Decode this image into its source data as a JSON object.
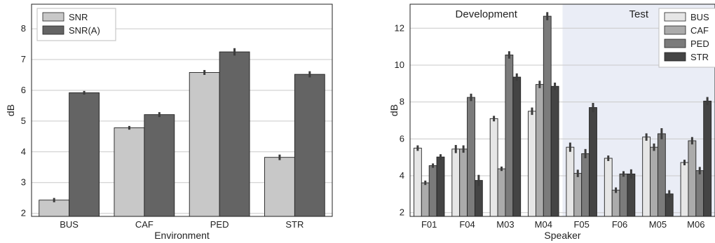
{
  "chart_data": [
    {
      "type": "bar",
      "title": "",
      "xlabel": "Environment",
      "ylabel": "dB",
      "ylim": [
        1.9,
        8.8
      ],
      "yticks": [
        2,
        3,
        4,
        5,
        6,
        7,
        8
      ],
      "categories": [
        "BUS",
        "CAF",
        "PED",
        "STR"
      ],
      "series": [
        {
          "name": "SNR",
          "color": "#c8c8c8",
          "values": [
            2.43,
            4.78,
            6.58,
            3.82
          ],
          "errors": [
            0.07,
            0.06,
            0.08,
            0.09
          ]
        },
        {
          "name": "SNR(A)",
          "color": "#646464",
          "values": [
            5.92,
            5.21,
            7.25,
            6.52
          ],
          "errors": [
            0.06,
            0.08,
            0.12,
            0.1
          ]
        }
      ],
      "legend": "top-left",
      "grid": true
    },
    {
      "type": "bar",
      "title": "",
      "xlabel": "Speaker",
      "ylabel": "dB",
      "ylim": [
        1.8,
        13.3
      ],
      "yticks": [
        2,
        4,
        6,
        8,
        10,
        12
      ],
      "categories": [
        "F01",
        "F04",
        "M03",
        "M04",
        "F05",
        "F06",
        "M05",
        "M06"
      ],
      "regions": [
        {
          "label": "Development",
          "from": 0,
          "to": 3,
          "color": "#ffffff"
        },
        {
          "label": "Test",
          "from": 4,
          "to": 7,
          "color": "#eaedf6"
        }
      ],
      "series": [
        {
          "name": "BUS",
          "color": "#e6e6e6",
          "values": [
            5.5,
            5.45,
            7.1,
            7.5,
            5.55,
            4.95,
            6.1,
            4.72
          ],
          "errors": [
            0.15,
            0.22,
            0.15,
            0.2,
            0.25,
            0.15,
            0.2,
            0.15
          ]
        },
        {
          "name": "CAF",
          "color": "#ababab",
          "values": [
            3.62,
            5.45,
            4.38,
            8.95,
            4.13,
            3.22,
            5.55,
            5.9
          ],
          "errors": [
            0.12,
            0.2,
            0.12,
            0.2,
            0.2,
            0.15,
            0.2,
            0.2
          ]
        },
        {
          "name": "PED",
          "color": "#7b7b7b",
          "values": [
            4.55,
            8.25,
            10.55,
            12.65,
            5.2,
            4.1,
            6.28,
            4.28
          ],
          "errors": [
            0.12,
            0.2,
            0.2,
            0.22,
            0.25,
            0.15,
            0.3,
            0.2
          ]
        },
        {
          "name": "STR",
          "color": "#444444",
          "values": [
            5.02,
            3.75,
            9.35,
            8.85,
            7.7,
            4.1,
            3.02,
            8.05
          ],
          "errors": [
            0.15,
            0.3,
            0.2,
            0.2,
            0.25,
            0.25,
            0.2,
            0.22
          ]
        }
      ],
      "legend": "top-right",
      "grid": true
    }
  ]
}
